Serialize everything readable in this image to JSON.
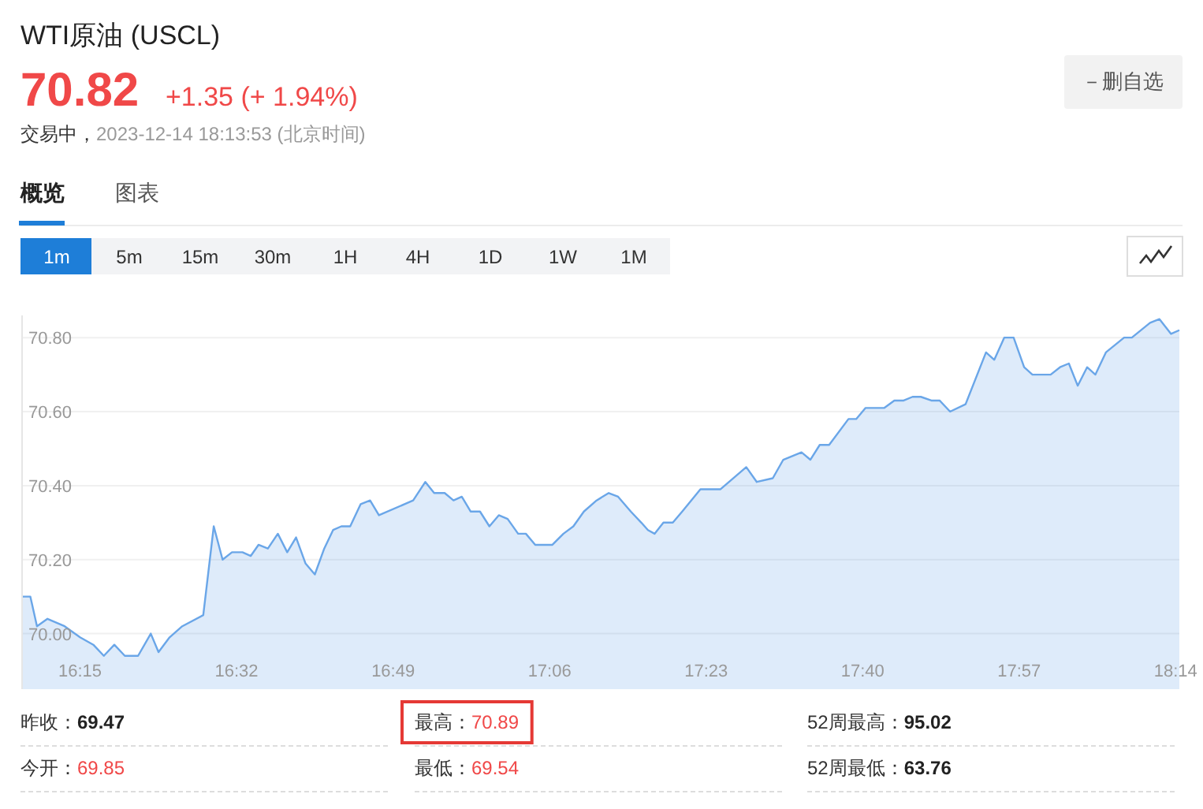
{
  "chart_data": {
    "type": "area",
    "title": "WTI原油 (USCL)",
    "annotations": [
      "70.82",
      "+1.35 (+ 1.94%)",
      "交易中，",
      "2023-12-14 18:13:53 (北京时间)",
      "－删自选",
      "概览",
      "图表",
      "1m",
      "5m",
      "15m",
      "30m",
      "1H",
      "4H",
      "1D",
      "1W",
      "1M",
      "昨收：69.47",
      "最高：70.89",
      "52周最高：95.02",
      "今开：69.85",
      "最低：69.54",
      "52周最低：63.76"
    ],
    "color": "#6aa6e8",
    "grid": "y",
    "xlim": [
      16.145,
      18.24
    ],
    "ylim": [
      69.85,
      70.86
    ],
    "xticks": [
      {
        "value": 16.25,
        "label": "16:15"
      },
      {
        "value": 16.5333,
        "label": "16:32"
      },
      {
        "value": 16.8167,
        "label": "16:49"
      },
      {
        "value": 17.1,
        "label": "17:06"
      },
      {
        "value": 17.3833,
        "label": "17:23"
      },
      {
        "value": 17.6667,
        "label": "17:40"
      },
      {
        "value": 17.95,
        "label": "17:57"
      },
      {
        "value": 18.2333,
        "label": "18:14"
      }
    ],
    "yticks": [
      {
        "value": 70.0,
        "label": "70.00"
      },
      {
        "value": 70.2,
        "label": "70.20"
      },
      {
        "value": 70.4,
        "label": "70.40"
      },
      {
        "value": 70.6,
        "label": "70.60"
      },
      {
        "value": 70.8,
        "label": "70.80"
      }
    ],
    "x": [
      16.145,
      16.16,
      16.172,
      16.191,
      16.222,
      16.25,
      16.274,
      16.293,
      16.312,
      16.331,
      16.355,
      16.378,
      16.392,
      16.412,
      16.435,
      16.473,
      16.492,
      16.508,
      16.525,
      16.544,
      16.559,
      16.573,
      16.59,
      16.608,
      16.625,
      16.641,
      16.658,
      16.675,
      16.692,
      16.708,
      16.723,
      16.739,
      16.758,
      16.775,
      16.791,
      16.853,
      16.875,
      16.891,
      16.91,
      16.926,
      16.941,
      16.957,
      16.974,
      16.991,
      17.008,
      17.024,
      17.043,
      17.057,
      17.074,
      17.105,
      17.125,
      17.143,
      17.162,
      17.185,
      17.207,
      17.224,
      17.247,
      17.266,
      17.278,
      17.29,
      17.306,
      17.323,
      17.34,
      17.373,
      17.409,
      17.456,
      17.475,
      17.504,
      17.523,
      17.556,
      17.572,
      17.589,
      17.606,
      17.641,
      17.655,
      17.672,
      17.706,
      17.724,
      17.741,
      17.757,
      17.772,
      17.791,
      17.806,
      17.825,
      17.853,
      17.89,
      17.905,
      17.923,
      17.94,
      17.959,
      17.974,
      17.993,
      18.007,
      18.024,
      18.04,
      18.056,
      18.073,
      18.088,
      18.107,
      18.14,
      18.154,
      18.187,
      18.204,
      18.225,
      18.24
    ],
    "values": [
      70.1,
      70.1,
      70.02,
      70.04,
      70.02,
      69.99,
      69.97,
      69.94,
      69.97,
      69.94,
      69.94,
      70.0,
      69.95,
      69.99,
      70.02,
      70.05,
      70.29,
      70.2,
      70.22,
      70.22,
      70.21,
      70.24,
      70.23,
      70.27,
      70.22,
      70.26,
      70.19,
      70.16,
      70.23,
      70.28,
      70.29,
      70.29,
      70.35,
      70.36,
      70.32,
      70.36,
      70.41,
      70.38,
      70.38,
      70.36,
      70.37,
      70.33,
      70.33,
      70.29,
      70.32,
      70.31,
      70.27,
      70.27,
      70.24,
      70.24,
      70.27,
      70.29,
      70.33,
      70.36,
      70.38,
      70.37,
      70.33,
      70.3,
      70.28,
      70.27,
      70.3,
      70.3,
      70.33,
      70.39,
      70.39,
      70.45,
      70.41,
      70.42,
      70.47,
      70.49,
      70.47,
      70.51,
      70.51,
      70.58,
      70.58,
      70.61,
      70.61,
      70.63,
      70.63,
      70.64,
      70.64,
      70.63,
      70.63,
      70.6,
      70.62,
      70.76,
      70.74,
      70.8,
      70.8,
      70.72,
      70.7,
      70.7,
      70.7,
      70.72,
      70.73,
      70.67,
      70.72,
      70.7,
      70.76,
      70.8,
      70.8,
      70.84,
      70.85,
      70.81,
      70.82
    ]
  }
}
